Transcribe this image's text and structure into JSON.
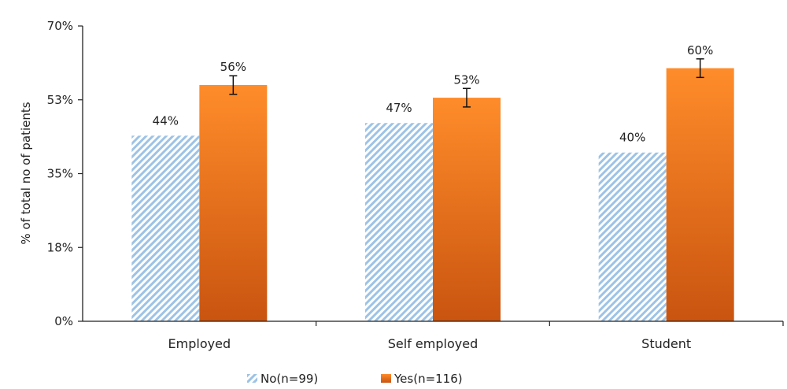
{
  "chart_data": {
    "type": "bar",
    "categories": [
      "Employed",
      "Self employed",
      "Student"
    ],
    "series": [
      {
        "name": "No(n=99)",
        "values": [
          44,
          47,
          40
        ],
        "labels": [
          "44%",
          "47%",
          "40%"
        ],
        "color": "#9dc3e6",
        "pattern": "diagonal-stripes"
      },
      {
        "name": "Yes(n=116)",
        "values": [
          56,
          53,
          60
        ],
        "labels": [
          "56%",
          "53%",
          "60%"
        ],
        "color": "#f07820",
        "error": [
          2.2,
          2.2,
          2.2
        ]
      }
    ],
    "ylabel": "% of total no of patients",
    "xlabel": "",
    "ylim": [
      0,
      70
    ],
    "yticks": [
      0,
      17.5,
      35,
      52.5,
      70
    ],
    "ytick_labels": [
      "0%",
      "18%",
      "35%",
      "53%",
      "70%"
    ],
    "grid": false,
    "legend_position": "bottom"
  }
}
